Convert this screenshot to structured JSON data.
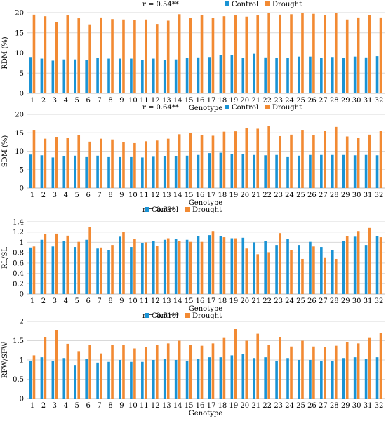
{
  "colors": {
    "control": "#1a93d4",
    "drought": "#f28a33",
    "grid": "#d9d9d9",
    "axis": "#bfbfbf"
  },
  "chart_data": [
    {
      "type": "bar",
      "annotation": "r = 0.54**",
      "xlabel": "Genotype",
      "ylabel": "RDM (%)",
      "ylim": [
        0,
        20
      ],
      "yticks": [
        0,
        5,
        10,
        15,
        20
      ],
      "categories": [
        "1",
        "2",
        "3",
        "4",
        "5",
        "6",
        "7",
        "8",
        "9",
        "10",
        "11",
        "12",
        "13",
        "14",
        "15",
        "16",
        "17",
        "18",
        "19",
        "20",
        "21",
        "22",
        "23",
        "24",
        "25",
        "26",
        "27",
        "28",
        "29",
        "30",
        "31",
        "32"
      ],
      "legend": {
        "position": "top-right"
      },
      "series": [
        {
          "name": "Control",
          "values": [
            9.0,
            8.6,
            8.1,
            8.4,
            8.4,
            8.2,
            8.7,
            8.6,
            8.6,
            8.6,
            8.2,
            8.6,
            8.3,
            8.4,
            8.8,
            8.9,
            9.0,
            9.5,
            9.5,
            8.8,
            9.8,
            8.9,
            8.8,
            8.8,
            9.1,
            9.1,
            8.8,
            9.0,
            8.8,
            9.1,
            8.9,
            9.2
          ]
        },
        {
          "name": "Drought",
          "values": [
            19.5,
            19.1,
            17.7,
            19.3,
            18.6,
            17.1,
            18.8,
            18.4,
            18.3,
            18.1,
            18.3,
            17.2,
            18.0,
            19.6,
            18.7,
            19.4,
            18.7,
            19.1,
            19.3,
            19.0,
            19.3,
            20.0,
            19.5,
            19.6,
            20.0,
            19.7,
            19.4,
            20.0,
            18.3,
            18.8,
            19.4,
            18.8
          ]
        }
      ]
    },
    {
      "type": "bar",
      "annotation": "r = 0.64**",
      "xlabel": "Genotype",
      "ylabel": "SDM (%)",
      "ylim": [
        0,
        20
      ],
      "yticks": [
        0,
        5,
        10,
        15,
        20
      ],
      "categories": [
        "1",
        "2",
        "3",
        "4",
        "5",
        "6",
        "7",
        "8",
        "9",
        "10",
        "11",
        "12",
        "13",
        "14",
        "15",
        "16",
        "17",
        "18",
        "19",
        "20",
        "21",
        "22",
        "23",
        "24",
        "25",
        "26",
        "27",
        "28",
        "29",
        "30",
        "31",
        "32"
      ],
      "legend": {
        "position": "top-right"
      },
      "series": [
        {
          "name": "Control",
          "values": [
            9.1,
            8.9,
            8.3,
            8.6,
            8.8,
            8.4,
            8.8,
            8.4,
            8.4,
            8.4,
            8.3,
            8.5,
            8.6,
            8.6,
            8.8,
            9.0,
            9.5,
            9.6,
            9.3,
            9.3,
            9.0,
            8.9,
            9.0,
            8.4,
            8.8,
            9.0,
            9.0,
            9.0,
            9.0,
            8.9,
            9.0,
            8.9
          ]
        },
        {
          "name": "Drought",
          "values": [
            15.8,
            13.4,
            13.9,
            13.6,
            14.3,
            12.6,
            13.4,
            13.2,
            12.5,
            12.2,
            12.7,
            12.9,
            13.4,
            14.6,
            15.0,
            14.4,
            14.2,
            15.3,
            15.4,
            16.3,
            16.1,
            16.9,
            14.1,
            14.5,
            15.8,
            14.3,
            15.5,
            16.6,
            14.0,
            13.7,
            14.5,
            15.5
          ]
        }
      ]
    },
    {
      "type": "bar",
      "annotation": "r = 0.39*",
      "xlabel": "Genotype",
      "ylabel": "RL/SL",
      "ylim": [
        0,
        1.4
      ],
      "yticks": [
        0,
        0.2,
        0.4,
        0.6,
        0.8,
        1.0,
        1.2,
        1.4
      ],
      "categories": [
        "1",
        "2",
        "3",
        "4",
        "5",
        "6",
        "7",
        "8",
        "9",
        "10",
        "11",
        "12",
        "13",
        "14",
        "15",
        "16",
        "17",
        "18",
        "19",
        "20",
        "21",
        "22",
        "23",
        "24",
        "25",
        "26",
        "27",
        "28",
        "29",
        "30",
        "31",
        "32"
      ],
      "legend": {
        "position": "top-center"
      },
      "series": [
        {
          "name": "Control",
          "values": [
            0.9,
            1.05,
            0.92,
            1.02,
            0.91,
            1.05,
            0.88,
            0.85,
            1.11,
            0.91,
            0.98,
            1.02,
            1.05,
            1.07,
            1.05,
            1.12,
            1.14,
            1.12,
            1.08,
            1.09,
            1.0,
            1.02,
            0.95,
            1.07,
            0.95,
            1.01,
            0.91,
            0.85,
            1.02,
            1.11,
            0.95,
            1.12
          ]
        },
        {
          "name": "Drought",
          "values": [
            0.92,
            1.16,
            1.17,
            1.13,
            1.01,
            1.3,
            0.9,
            0.95,
            1.2,
            1.06,
            1.0,
            0.93,
            1.08,
            1.03,
            1.01,
            1.01,
            1.22,
            1.1,
            1.08,
            0.88,
            0.77,
            0.81,
            1.18,
            0.85,
            0.68,
            0.92,
            0.71,
            0.68,
            1.12,
            1.22,
            1.28,
            1.1
          ]
        }
      ]
    },
    {
      "type": "bar",
      "annotation": "r = 0.51**",
      "xlabel": "Genotype",
      "ylabel": "RFW/SFW",
      "ylim": [
        0,
        2.0
      ],
      "yticks": [
        0,
        0.5,
        1.0,
        1.5,
        2.0
      ],
      "categories": [
        "1",
        "2",
        "3",
        "4",
        "5",
        "6",
        "7",
        "8",
        "9",
        "10",
        "11",
        "12",
        "13",
        "14",
        "15",
        "16",
        "17",
        "18",
        "19",
        "20",
        "21",
        "22",
        "23",
        "24",
        "25",
        "26",
        "27",
        "28",
        "29",
        "30",
        "31",
        "32"
      ],
      "legend": {
        "position": "top-center"
      },
      "series": [
        {
          "name": "Control",
          "values": [
            0.97,
            1.07,
            0.97,
            1.05,
            0.87,
            1.02,
            0.93,
            0.95,
            1.0,
            0.95,
            0.95,
            1.0,
            1.02,
            1.0,
            0.97,
            1.02,
            1.07,
            1.07,
            1.12,
            1.15,
            1.05,
            1.07,
            0.97,
            1.05,
            1.0,
            1.0,
            0.97,
            0.97,
            1.05,
            1.07,
            1.02,
            1.07
          ]
        },
        {
          "name": "Drought",
          "values": [
            1.12,
            1.6,
            1.77,
            1.42,
            1.23,
            1.4,
            1.17,
            1.4,
            1.4,
            1.3,
            1.33,
            1.4,
            1.43,
            1.5,
            1.4,
            1.37,
            1.43,
            1.57,
            1.8,
            1.5,
            1.68,
            1.4,
            1.6,
            1.35,
            1.5,
            1.35,
            1.33,
            1.37,
            1.47,
            1.43,
            1.57,
            1.7
          ]
        }
      ]
    }
  ]
}
